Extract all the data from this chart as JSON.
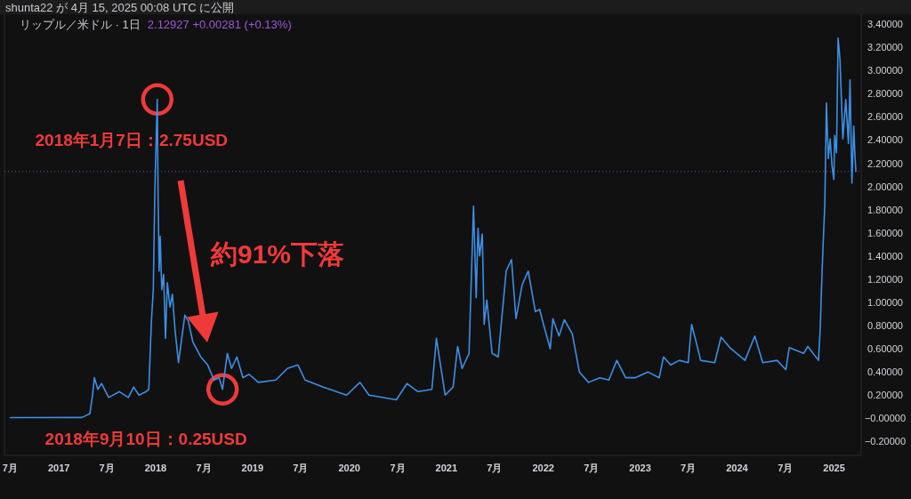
{
  "chart_data": {
    "type": "line",
    "title": "リップル／米ドル · 1日",
    "subtitle": "2.12927 +0.00281 (+0.13%)",
    "annotations": [
      {
        "text": "2018年1月7日：2.75USD",
        "x": "2018-01-07",
        "y": 2.75
      },
      {
        "text": "2018年9月10日：0.25USD",
        "x": "2018-09-10",
        "y": 0.25
      },
      "約91%下落",
      "shunta22 が 4月 15, 2025 00:08 UTC に公開"
    ],
    "xlim": [
      "2016-06-10",
      "2025-04-13"
    ],
    "xticks": [
      {
        "value": "2016-07-01",
        "label": "7月"
      },
      {
        "value": "2017-01-01",
        "label": "2017"
      },
      {
        "value": "2017-07-01",
        "label": "7月"
      },
      {
        "value": "2018-01-01",
        "label": "2018"
      },
      {
        "value": "2018-07-01",
        "label": "7月"
      },
      {
        "value": "2019-01-01",
        "label": "2019"
      },
      {
        "value": "2019-07-01",
        "label": "7月"
      },
      {
        "value": "2020-01-01",
        "label": "2020"
      },
      {
        "value": "2020-07-01",
        "label": "7月"
      },
      {
        "value": "2021-01-01",
        "label": "2021"
      },
      {
        "value": "2021-07-01",
        "label": "7月"
      },
      {
        "value": "2022-01-01",
        "label": "2022"
      },
      {
        "value": "2022-07-01",
        "label": "7月"
      },
      {
        "value": "2023-01-01",
        "label": "2023"
      },
      {
        "value": "2023-07-01",
        "label": "7月"
      },
      {
        "value": "2024-01-01",
        "label": "2024"
      },
      {
        "value": "2024-07-01",
        "label": "7月"
      },
      {
        "value": "2025-01-01",
        "label": "2025"
      }
    ],
    "ylim": [
      -0.32,
      3.47
    ],
    "yticks": [
      {
        "value": 3.4,
        "label": "3.40000"
      },
      {
        "value": 3.2,
        "label": "3.20000"
      },
      {
        "value": 3.0,
        "label": "3.00000"
      },
      {
        "value": 2.8,
        "label": "2.80000"
      },
      {
        "value": 2.6,
        "label": "2.60000"
      },
      {
        "value": 2.4,
        "label": "2.40000"
      },
      {
        "value": 2.2,
        "label": "2.20000"
      },
      {
        "value": 2.0,
        "label": "2.00000"
      },
      {
        "value": 1.8,
        "label": "1.80000"
      },
      {
        "value": 1.6,
        "label": "1.60000"
      },
      {
        "value": 1.4,
        "label": "1.40000"
      },
      {
        "value": 1.2,
        "label": "1.20000"
      },
      {
        "value": 1.0,
        "label": "1.00000"
      },
      {
        "value": 0.8,
        "label": "0.80000"
      },
      {
        "value": 0.6,
        "label": "0.60000"
      },
      {
        "value": 0.4,
        "label": "0.40000"
      },
      {
        "value": 0.2,
        "label": "0.20000"
      },
      {
        "value": 0,
        "label": "−0.00000"
      },
      {
        "value": -0.2,
        "label": "−0.20000"
      }
    ],
    "ref_lines": [
      {
        "axis": "y",
        "value": 2.12927,
        "color": "#6a4fc4",
        "line_style": "dotted"
      }
    ],
    "series": [
      {
        "color": "#3d8fe6",
        "x": [
          "2016-07-02",
          "2017-03-29",
          "2017-04-28",
          "2017-05-08",
          "2017-05-15",
          "2017-05-28",
          "2017-06-11",
          "2017-07-08",
          "2017-08-17",
          "2017-09-20",
          "2017-10-10",
          "2017-10-30",
          "2017-11-26",
          "2017-12-06",
          "2017-12-16",
          "2017-12-23",
          "2017-12-29",
          "2018-01-07",
          "2018-01-10",
          "2018-01-14",
          "2018-01-18",
          "2018-01-24",
          "2018-01-31",
          "2018-02-07",
          "2018-02-14",
          "2018-02-24",
          "2018-03-05",
          "2018-03-15",
          "2018-03-28",
          "2018-04-21",
          "2018-05-04",
          "2018-05-21",
          "2018-06-20",
          "2018-07-16",
          "2018-08-09",
          "2018-08-28",
          "2018-09-10",
          "2018-09-28",
          "2018-10-14",
          "2018-11-03",
          "2018-11-26",
          "2018-12-19",
          "2019-01-23",
          "2019-03-30",
          "2019-05-12",
          "2019-06-21",
          "2019-07-18",
          "2019-09-23",
          "2019-12-22",
          "2020-02-10",
          "2020-03-15",
          "2020-04-10",
          "2020-06-26",
          "2020-08-05",
          "2020-09-15",
          "2020-11-07",
          "2020-11-24",
          "2020-12-27",
          "2021-01-26",
          "2021-02-12",
          "2021-03-01",
          "2021-03-27",
          "2021-04-13",
          "2021-04-23",
          "2021-04-30",
          "2021-05-06",
          "2021-05-16",
          "2021-05-23",
          "2021-06-02",
          "2021-06-22",
          "2021-07-15",
          "2021-08-14",
          "2021-09-03",
          "2021-09-20",
          "2021-10-13",
          "2021-11-05",
          "2021-12-02",
          "2021-12-18",
          "2022-01-04",
          "2022-01-27",
          "2022-02-06",
          "2022-03-01",
          "2022-03-21",
          "2022-04-20",
          "2022-05-17",
          "2022-06-20",
          "2022-08-02",
          "2022-09-05",
          "2022-10-05",
          "2022-11-07",
          "2022-12-13",
          "2023-01-30",
          "2023-03-14",
          "2023-03-30",
          "2023-04-26",
          "2023-05-29",
          "2023-07-01",
          "2023-07-14",
          "2023-08-03",
          "2023-08-17",
          "2023-10-09",
          "2023-11-02",
          "2023-12-05",
          "2024-01-31",
          "2024-03-08",
          "2024-04-07",
          "2024-05-31",
          "2024-07-03",
          "2024-07-16",
          "2024-09-08",
          "2024-09-24",
          "2024-11-03",
          "2024-11-10",
          "2024-11-14",
          "2024-11-20",
          "2024-11-27",
          "2024-12-03",
          "2024-12-10",
          "2024-12-17",
          "2024-12-24",
          "2024-12-31",
          "2025-01-03",
          "2025-01-10",
          "2025-01-16",
          "2025-01-23",
          "2025-02-03",
          "2025-02-14",
          "2025-02-24",
          "2025-03-02",
          "2025-03-09",
          "2025-03-16",
          "2025-03-20",
          "2025-03-24"
        ],
        "values": [
          0.006,
          0.007,
          0.04,
          0.2,
          0.35,
          0.25,
          0.3,
          0.18,
          0.23,
          0.18,
          0.27,
          0.2,
          0.23,
          0.25,
          0.84,
          1.11,
          1.98,
          2.75,
          1.93,
          1.27,
          1.57,
          1.11,
          1.24,
          0.69,
          1.17,
          0.96,
          1.07,
          0.76,
          0.48,
          0.89,
          0.84,
          0.66,
          0.53,
          0.46,
          0.33,
          0.35,
          0.25,
          0.56,
          0.43,
          0.53,
          0.35,
          0.38,
          0.31,
          0.33,
          0.43,
          0.46,
          0.33,
          0.27,
          0.2,
          0.31,
          0.2,
          0.19,
          0.16,
          0.3,
          0.23,
          0.25,
          0.69,
          0.2,
          0.27,
          0.62,
          0.43,
          0.56,
          1.83,
          1.04,
          1.64,
          1.4,
          1.59,
          0.81,
          1.02,
          0.56,
          0.53,
          1.27,
          1.37,
          0.86,
          1.15,
          1.27,
          0.92,
          0.94,
          0.79,
          0.6,
          0.86,
          0.71,
          0.85,
          0.73,
          0.4,
          0.31,
          0.35,
          0.33,
          0.5,
          0.35,
          0.35,
          0.4,
          0.35,
          0.53,
          0.46,
          0.5,
          0.48,
          0.81,
          0.63,
          0.5,
          0.48,
          0.7,
          0.61,
          0.5,
          0.71,
          0.48,
          0.5,
          0.42,
          0.61,
          0.56,
          0.62,
          0.5,
          0.79,
          1.09,
          1.47,
          1.85,
          2.72,
          2.24,
          2.41,
          2.18,
          2.06,
          2.44,
          2.29,
          3.28,
          3.1,
          2.41,
          2.75,
          2.37,
          2.92,
          2.03,
          2.52,
          2.29,
          2.13
        ]
      }
    ]
  }
}
